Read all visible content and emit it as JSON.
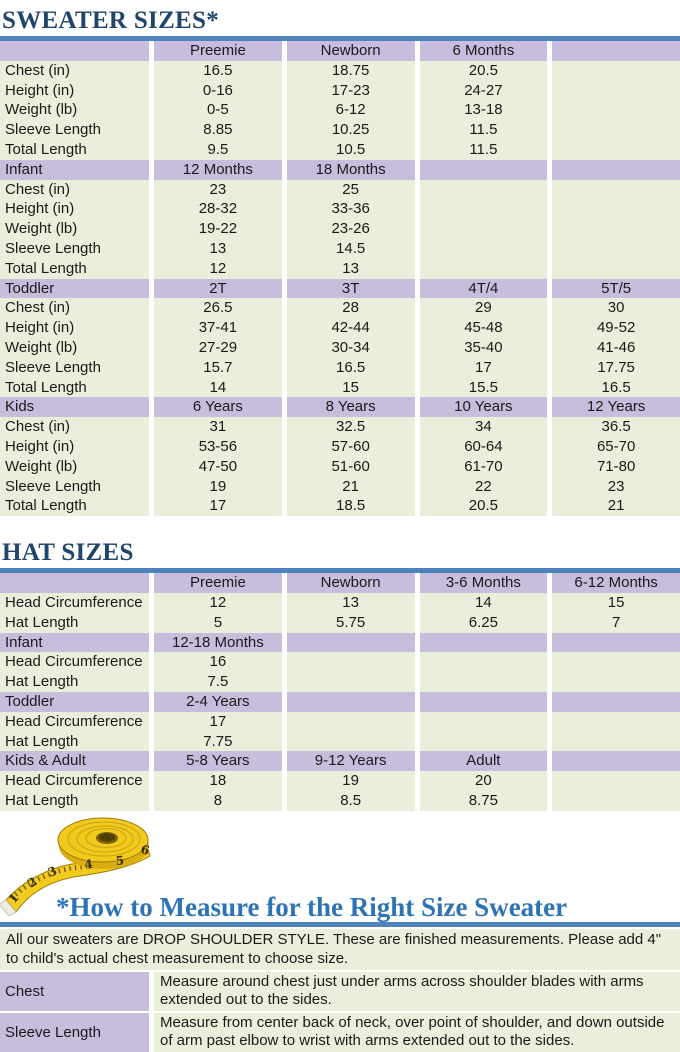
{
  "colors": {
    "header_purple": "#c8bddd",
    "cell_green": "#e9efdb",
    "heading_navy": "#20456b",
    "heading_blue": "#2e74b5",
    "rule_blue": "#4f81bd"
  },
  "sweater": {
    "title": "SWEATER SIZES*",
    "sections": [
      {
        "header": [
          "",
          "Preemie",
          "Newborn",
          "6 Months",
          ""
        ],
        "rows": [
          [
            "Chest (in)",
            "16.5",
            "18.75",
            "20.5",
            ""
          ],
          [
            "Height (in)",
            "0-16",
            "17-23",
            "24-27",
            ""
          ],
          [
            "Weight (lb)",
            "0-5",
            "6-12",
            "13-18",
            ""
          ],
          [
            "Sleeve Length",
            "8.85",
            "10.25",
            "11.5",
            ""
          ],
          [
            "Total Length",
            "9.5",
            "10.5",
            "11.5",
            ""
          ]
        ]
      },
      {
        "header": [
          "Infant",
          "12 Months",
          "18 Months",
          "",
          ""
        ],
        "rows": [
          [
            "Chest (in)",
            "23",
            "25",
            "",
            ""
          ],
          [
            "Height (in)",
            "28-32",
            "33-36",
            "",
            ""
          ],
          [
            "Weight (lb)",
            "19-22",
            "23-26",
            "",
            ""
          ],
          [
            "Sleeve Length",
            "13",
            "14.5",
            "",
            ""
          ],
          [
            "Total Length",
            "12",
            "13",
            "",
            ""
          ]
        ]
      },
      {
        "header": [
          "Toddler",
          "2T",
          "3T",
          "4T/4",
          "5T/5"
        ],
        "rows": [
          [
            "Chest (in)",
            "26.5",
            "28",
            "29",
            "30"
          ],
          [
            "Height (in)",
            "37-41",
            "42-44",
            "45-48",
            "49-52"
          ],
          [
            "Weight (lb)",
            "27-29",
            "30-34",
            "35-40",
            "41-46"
          ],
          [
            "Sleeve Length",
            "15.7",
            "16.5",
            "17",
            "17.75"
          ],
          [
            "Total Length",
            "14",
            "15",
            "15.5",
            "16.5"
          ]
        ]
      },
      {
        "header": [
          "Kids",
          "6 Years",
          "8 Years",
          "10 Years",
          "12 Years"
        ],
        "rows": [
          [
            "Chest (in)",
            "31",
            "32.5",
            "34",
            "36.5"
          ],
          [
            "Height (in)",
            "53-56",
            "57-60",
            "60-64",
            "65-70"
          ],
          [
            "Weight (lb)",
            "47-50",
            "51-60",
            "61-70",
            "71-80"
          ],
          [
            "Sleeve Length",
            "19",
            "21",
            "22",
            "23"
          ],
          [
            "Total Length",
            "17",
            "18.5",
            "20.5",
            "21"
          ]
        ]
      }
    ]
  },
  "hat": {
    "title": "HAT SIZES",
    "sections": [
      {
        "header": [
          "",
          "Preemie",
          "Newborn",
          "3-6 Months",
          "6-12 Months"
        ],
        "rows": [
          [
            "Head Circumference",
            "12",
            "13",
            "14",
            "15"
          ],
          [
            "Hat Length",
            "5",
            "5.75",
            "6.25",
            "7"
          ]
        ]
      },
      {
        "header": [
          "Infant",
          "12-18 Months",
          "",
          "",
          ""
        ],
        "rows": [
          [
            "Head Circumference",
            "16",
            "",
            "",
            ""
          ],
          [
            "Hat Length",
            "7.5",
            "",
            "",
            ""
          ]
        ]
      },
      {
        "header": [
          "Toddler",
          "2-4 Years",
          "",
          "",
          ""
        ],
        "rows": [
          [
            "Head Circumference",
            "17",
            "",
            "",
            ""
          ],
          [
            "Hat Length",
            "7.75",
            "",
            "",
            ""
          ]
        ]
      },
      {
        "header": [
          "Kids & Adult",
          "5-8 Years",
          "9-12 Years",
          "Adult",
          ""
        ],
        "rows": [
          [
            "Head Circumference",
            "18",
            "19",
            "20",
            ""
          ],
          [
            "Hat Length",
            "8",
            "8.5",
            "8.75",
            ""
          ]
        ]
      }
    ]
  },
  "measure": {
    "title": "*How to Measure for the Right Size Sweater",
    "tape_icon": "measuring-tape",
    "tape_numbers": [
      "1",
      "2",
      "3",
      "4",
      "5",
      "6"
    ],
    "intro": "All our sweaters are DROP SHOULDER STYLE.  These are finished measurements.  Please add 4\" to child's actual chest measurement to choose size.",
    "rows": [
      {
        "label": "Chest",
        "text": "Measure around chest just under arms across shoulder blades with arms extended out to the sides."
      },
      {
        "label": "Sleeve Length",
        "text": "Measure from center back of neck, over point of shoulder, and down outside of arm past elbow to wrist with arms extended out to the sides."
      }
    ]
  }
}
